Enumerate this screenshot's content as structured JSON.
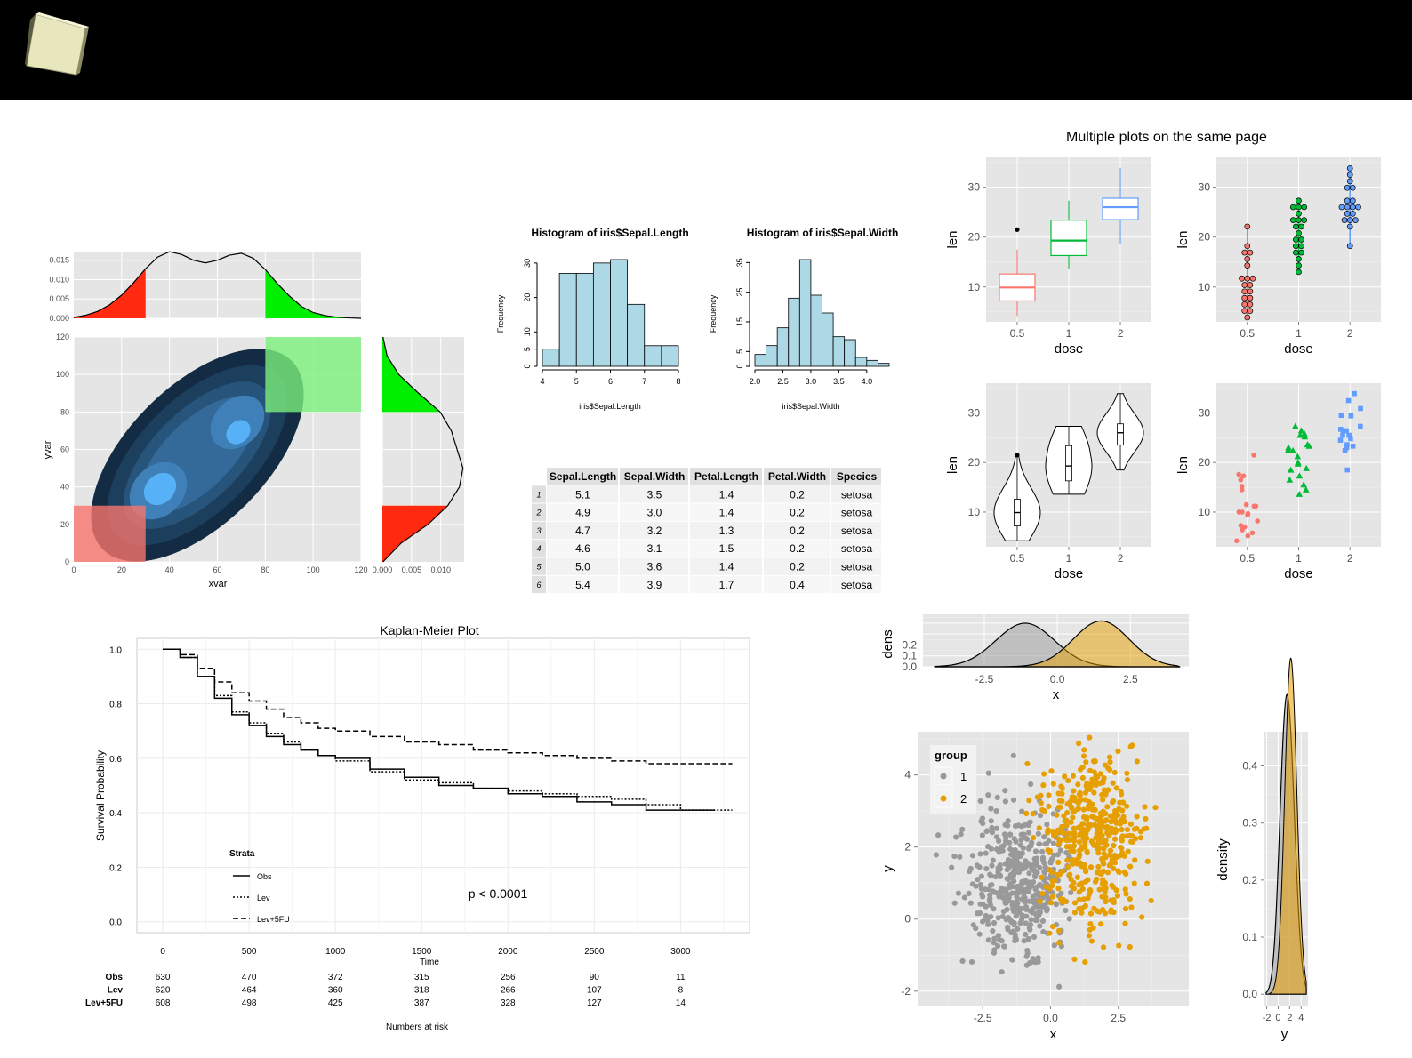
{
  "page": {
    "dashboard_title": "Multiple plots on the same page",
    "colors": {
      "header": "#000000",
      "panel": "#e5e5e5",
      "red": "#f8766d",
      "green": "#00ba38",
      "blue": "#619cff",
      "hist": "#add8e6",
      "grey": "#999999",
      "orange": "#e69f00"
    }
  },
  "header": {
    "icon": "cube-icon"
  },
  "chart_data": [
    {
      "id": "marginal-density-top",
      "type": "area",
      "xlim": [
        0,
        120
      ],
      "ylim": [
        0,
        0.017
      ],
      "y_ticks": [
        "0.000",
        "0.005",
        "0.010",
        "0.015"
      ],
      "x": [
        0,
        5,
        10,
        15,
        20,
        25,
        30,
        35,
        40,
        45,
        50,
        55,
        60,
        65,
        70,
        75,
        80,
        85,
        90,
        95,
        100,
        105,
        110,
        115,
        120
      ],
      "density": [
        0.0002,
        0.0008,
        0.0018,
        0.0035,
        0.006,
        0.0092,
        0.0128,
        0.0158,
        0.0172,
        0.0165,
        0.015,
        0.0143,
        0.015,
        0.0163,
        0.0168,
        0.0155,
        0.0126,
        0.009,
        0.0058,
        0.0031,
        0.0015,
        0.0007,
        0.0003,
        0.0001,
        0.0
      ],
      "shaded": [
        {
          "from": 0,
          "to": 30,
          "color": "#ff2a0f"
        },
        {
          "from": 80,
          "to": 120,
          "color": "#00ee00"
        }
      ]
    },
    {
      "id": "density-2d",
      "type": "heatmap",
      "xlabel": "xvar",
      "ylabel": "yvar",
      "xlim": [
        0,
        120
      ],
      "ylim": [
        0,
        120
      ],
      "x_ticks": [
        0,
        20,
        40,
        60,
        80,
        100,
        120
      ],
      "y_ticks": [
        0,
        20,
        40,
        60,
        80,
        100,
        120
      ],
      "contour_levels": 6,
      "modes": [
        [
          35,
          35
        ],
        [
          68,
          68
        ]
      ],
      "highlight_regions": [
        {
          "x": [
            0,
            30
          ],
          "y": [
            0,
            30
          ],
          "color": "#f8766d"
        },
        {
          "x": [
            80,
            120
          ],
          "y": [
            80,
            120
          ],
          "color": "#7cf07c"
        }
      ]
    },
    {
      "id": "marginal-density-right",
      "type": "area",
      "orientation": "horizontal",
      "ylim": [
        0,
        120
      ],
      "xlim": [
        0,
        0.014
      ],
      "x_ticks": [
        "0.000",
        "0.005",
        "0.010"
      ],
      "y": [
        0,
        10,
        20,
        30,
        40,
        50,
        60,
        70,
        80,
        90,
        100,
        110,
        120
      ],
      "density": [
        0.0001,
        0.0032,
        0.0078,
        0.0112,
        0.0132,
        0.0138,
        0.0128,
        0.0118,
        0.0099,
        0.0062,
        0.0028,
        0.0008,
        0.0001
      ],
      "shaded": [
        {
          "from": 0,
          "to": 30,
          "color": "#ff2a0f"
        },
        {
          "from": 80,
          "to": 120,
          "color": "#00ee00"
        }
      ]
    },
    {
      "id": "hist-sepal-length",
      "type": "bar",
      "title": "Histogram of iris$Sepal.Length",
      "xlabel": "iris$Sepal.Length",
      "ylabel": "Frequency",
      "breaks": [
        4,
        4.5,
        5,
        5.5,
        6,
        6.5,
        7,
        7.5,
        8
      ],
      "values": [
        5,
        27,
        27,
        30,
        31,
        18,
        6,
        6
      ],
      "x_ticks": [
        4,
        5,
        6,
        7,
        8
      ],
      "y_ticks": [
        0,
        5,
        10,
        20,
        30
      ],
      "ylim": [
        0,
        31
      ]
    },
    {
      "id": "hist-sepal-width",
      "type": "bar",
      "title": "Histogram of iris$Sepal.Width",
      "xlabel": "iris$Sepal.Width",
      "ylabel": "Frequency",
      "breaks": [
        2.0,
        2.2,
        2.4,
        2.6,
        2.8,
        3.0,
        3.2,
        3.4,
        3.6,
        3.8,
        4.0,
        4.2,
        4.4
      ],
      "values": [
        4,
        7,
        13,
        23,
        36,
        24,
        18,
        10,
        9,
        3,
        2,
        1
      ],
      "x_ticks": [
        "2.0",
        "2.5",
        "3.0",
        "3.5",
        "4.0"
      ],
      "y_ticks": [
        0,
        5,
        15,
        25,
        35
      ],
      "ylim": [
        0,
        36
      ]
    },
    {
      "id": "iris-head-table",
      "type": "table",
      "columns": [
        "Sepal.Length",
        "Sepal.Width",
        "Petal.Length",
        "Petal.Width",
        "Species"
      ],
      "row_labels": [
        "1",
        "2",
        "3",
        "4",
        "5",
        "6"
      ],
      "rows": [
        [
          "5.1",
          "3.5",
          "1.4",
          "0.2",
          "setosa"
        ],
        [
          "4.9",
          "3.0",
          "1.4",
          "0.2",
          "setosa"
        ],
        [
          "4.7",
          "3.2",
          "1.3",
          "0.2",
          "setosa"
        ],
        [
          "4.6",
          "3.1",
          "1.5",
          "0.2",
          "setosa"
        ],
        [
          "5.0",
          "3.6",
          "1.4",
          "0.2",
          "setosa"
        ],
        [
          "5.4",
          "3.9",
          "1.7",
          "0.4",
          "setosa"
        ]
      ]
    },
    {
      "id": "boxplot-len-dose",
      "type": "box",
      "xlabel": "dose",
      "ylabel": "len",
      "categories": [
        "0.5",
        "1",
        "2"
      ],
      "ylim": [
        3,
        36
      ],
      "y_ticks": [
        10,
        20,
        30
      ],
      "boxes": [
        {
          "min": 4.2,
          "q1": 7.2,
          "median": 9.9,
          "q3": 12.6,
          "max": 17.5,
          "outliers": [
            21.5
          ],
          "color": "#f8766d"
        },
        {
          "min": 13.6,
          "q1": 16.3,
          "median": 19.3,
          "q3": 23.4,
          "max": 27.3,
          "outliers": [],
          "color": "#00ba38"
        },
        {
          "min": 18.5,
          "q1": 23.5,
          "median": 26.0,
          "q3": 27.8,
          "max": 33.9,
          "outliers": [],
          "color": "#619cff"
        }
      ]
    },
    {
      "id": "dotplot-len-dose",
      "type": "scatter",
      "xlabel": "dose",
      "ylabel": "len",
      "categories": [
        "0.5",
        "1",
        "2"
      ],
      "ylim": [
        3,
        36
      ],
      "y_ticks": [
        10,
        20,
        30
      ],
      "groups": [
        {
          "color": "#f8766d",
          "values": [
            4.2,
            5.2,
            5.8,
            6.4,
            7.0,
            7.3,
            8.2,
            9.4,
            9.7,
            10.0,
            10.0,
            11.2,
            11.2,
            11.5,
            14.5,
            15.2,
            16.5,
            17.3,
            17.6,
            21.5
          ]
        },
        {
          "color": "#00ba38",
          "values": [
            13.6,
            14.5,
            15.5,
            16.5,
            17.3,
            18.5,
            18.8,
            19.7,
            20.0,
            21.2,
            22.4,
            22.5,
            23.0,
            23.3,
            23.6,
            25.2,
            25.5,
            25.8,
            26.4,
            27.3
          ]
        },
        {
          "color": "#619cff",
          "values": [
            18.5,
            22.4,
            23.0,
            23.3,
            23.6,
            24.5,
            24.8,
            25.5,
            25.5,
            26.4,
            26.4,
            26.7,
            27.3,
            29.4,
            29.5,
            30.9,
            32.5,
            33.9
          ]
        }
      ]
    },
    {
      "id": "violin-len-dose",
      "type": "violin",
      "xlabel": "dose",
      "ylabel": "len",
      "categories": [
        "0.5",
        "1",
        "2"
      ],
      "ylim": [
        3,
        36
      ],
      "y_ticks": [
        10,
        20,
        30
      ],
      "violins": [
        {
          "min": 4.2,
          "max": 21.5,
          "median": 9.9,
          "q1": 7.2,
          "q3": 12.6,
          "outliers": [
            21.5
          ]
        },
        {
          "min": 13.6,
          "max": 27.3,
          "median": 19.3,
          "q1": 16.3,
          "q3": 23.4,
          "outliers": []
        },
        {
          "min": 18.5,
          "max": 33.9,
          "median": 26.0,
          "q1": 23.5,
          "q3": 27.8,
          "outliers": []
        }
      ]
    },
    {
      "id": "jitter-len-dose",
      "type": "scatter",
      "xlabel": "dose",
      "ylabel": "len",
      "categories": [
        "0.5",
        "1",
        "2"
      ],
      "ylim": [
        3,
        36
      ],
      "y_ticks": [
        10,
        20,
        30
      ],
      "shapes": [
        "circle",
        "triangle",
        "square"
      ],
      "groups": [
        {
          "color": "#f8766d",
          "values": [
            4.2,
            5.2,
            5.8,
            6.4,
            7.0,
            7.3,
            8.2,
            9.4,
            9.7,
            10.0,
            10.0,
            11.2,
            11.2,
            11.5,
            14.5,
            15.2,
            16.5,
            17.3,
            17.6,
            21.5
          ]
        },
        {
          "color": "#00ba38",
          "values": [
            13.6,
            14.5,
            15.5,
            16.5,
            17.3,
            18.5,
            18.8,
            19.7,
            20.0,
            21.2,
            22.4,
            22.5,
            23.0,
            23.3,
            23.6,
            25.2,
            25.5,
            25.8,
            26.4,
            27.3
          ]
        },
        {
          "color": "#619cff",
          "values": [
            18.5,
            22.4,
            23.0,
            23.3,
            23.6,
            24.5,
            24.8,
            25.5,
            25.5,
            26.4,
            26.4,
            26.7,
            27.3,
            29.4,
            29.5,
            30.9,
            32.5,
            33.9
          ]
        }
      ]
    },
    {
      "id": "kaplan-meier",
      "type": "line",
      "title": "Kaplan-Meier Plot",
      "xlabel": "Time",
      "ylabel": "Survival Probability",
      "xlim": [
        -150,
        3400
      ],
      "ylim": [
        -0.04,
        1.04
      ],
      "x_ticks": [
        0,
        500,
        1000,
        1500,
        2000,
        2500,
        3000
      ],
      "y_ticks": [
        "0.0",
        "0.2",
        "0.4",
        "0.6",
        "0.8",
        "1.0"
      ],
      "annotation": "p < 0.0001",
      "legend_title": "Strata",
      "series": [
        {
          "name": "Obs",
          "dash": "solid",
          "x": [
            0,
            100,
            200,
            300,
            400,
            500,
            600,
            700,
            800,
            900,
            1000,
            1200,
            1400,
            1600,
            1800,
            2000,
            2200,
            2400,
            2600,
            2800,
            3000,
            3200
          ],
          "y": [
            1.0,
            0.97,
            0.9,
            0.82,
            0.76,
            0.72,
            0.68,
            0.65,
            0.63,
            0.61,
            0.6,
            0.56,
            0.53,
            0.5,
            0.49,
            0.47,
            0.46,
            0.44,
            0.43,
            0.41,
            0.41,
            0.41
          ]
        },
        {
          "name": "Lev",
          "dash": "dotted",
          "x": [
            0,
            100,
            200,
            300,
            400,
            500,
            600,
            700,
            800,
            900,
            1000,
            1200,
            1400,
            1600,
            1800,
            2000,
            2200,
            2400,
            2600,
            2800,
            3000,
            3300
          ],
          "y": [
            1.0,
            0.97,
            0.9,
            0.83,
            0.77,
            0.73,
            0.69,
            0.66,
            0.63,
            0.61,
            0.59,
            0.55,
            0.52,
            0.51,
            0.49,
            0.48,
            0.47,
            0.46,
            0.45,
            0.43,
            0.41,
            0.41
          ]
        },
        {
          "name": "Lev+5FU",
          "dash": "dashed",
          "x": [
            0,
            100,
            200,
            300,
            400,
            500,
            600,
            700,
            800,
            900,
            1000,
            1200,
            1400,
            1600,
            1800,
            2000,
            2200,
            2400,
            2600,
            2800,
            3000,
            3300
          ],
          "y": [
            1.0,
            0.98,
            0.93,
            0.88,
            0.84,
            0.81,
            0.78,
            0.75,
            0.73,
            0.71,
            0.7,
            0.68,
            0.66,
            0.65,
            0.63,
            0.62,
            0.61,
            0.6,
            0.59,
            0.58,
            0.58,
            0.58
          ]
        }
      ],
      "risk_table": {
        "title": "Numbers at risk",
        "times": [
          0,
          500,
          1000,
          1500,
          2000,
          2500,
          3000
        ],
        "rows": [
          {
            "label": "Obs",
            "values": [
              630,
              470,
              372,
              315,
              256,
              90,
              11
            ]
          },
          {
            "label": "Lev",
            "values": [
              620,
              464,
              360,
              318,
              266,
              107,
              8
            ]
          },
          {
            "label": "Lev+5FU",
            "values": [
              608,
              498,
              425,
              387,
              328,
              127,
              14
            ]
          }
        ]
      }
    },
    {
      "id": "density-x-by-group",
      "type": "area",
      "xlabel": "x",
      "ylabel": "dens",
      "xlim": [
        -4.6,
        4.5
      ],
      "ylim": [
        0,
        0.48
      ],
      "x_ticks": [
        "-2.5",
        "0.0",
        "2.5"
      ],
      "y_ticks": [
        "0.0",
        "0.1",
        "0.2"
      ],
      "series": [
        {
          "name": "1",
          "color": "#999999",
          "mean": -1.1,
          "sd": 1.0
        },
        {
          "name": "2",
          "color": "#e69f00",
          "mean": 1.5,
          "sd": 0.95
        }
      ]
    },
    {
      "id": "scatter-xy-group",
      "type": "scatter",
      "xlabel": "x",
      "ylabel": "y",
      "xlim": [
        -4.9,
        5.1
      ],
      "ylim": [
        -2.4,
        5.2
      ],
      "x_ticks": [
        "-2.5",
        "0.0",
        "2.5"
      ],
      "y_ticks": [
        -2,
        0,
        2,
        4
      ],
      "legend_title": "group",
      "series": [
        {
          "name": "1",
          "color": "#999999",
          "n": 450,
          "mean": [
            -1.1,
            1.0
          ],
          "sd": [
            1.0,
            1.1
          ]
        },
        {
          "name": "2",
          "color": "#e69f00",
          "n": 450,
          "mean": [
            1.5,
            2.2
          ],
          "sd": [
            0.95,
            1.2
          ]
        }
      ]
    },
    {
      "id": "density-y",
      "type": "area",
      "xlabel": "y",
      "ylabel": "density",
      "xlim": [
        -2.4,
        5.2
      ],
      "ylim": [
        -0.02,
        0.46
      ],
      "x_ticks": [
        -2,
        0,
        2,
        4
      ],
      "y_ticks": [
        "0.0",
        "0.1",
        "0.2",
        "0.3",
        "0.4"
      ],
      "series": [
        {
          "name": "1",
          "color": "#999999",
          "mean": 1.0,
          "sd": 1.0
        },
        {
          "name": "2",
          "color": "#e69f00",
          "mean": 2.2,
          "sd": 1.05
        }
      ]
    }
  ]
}
